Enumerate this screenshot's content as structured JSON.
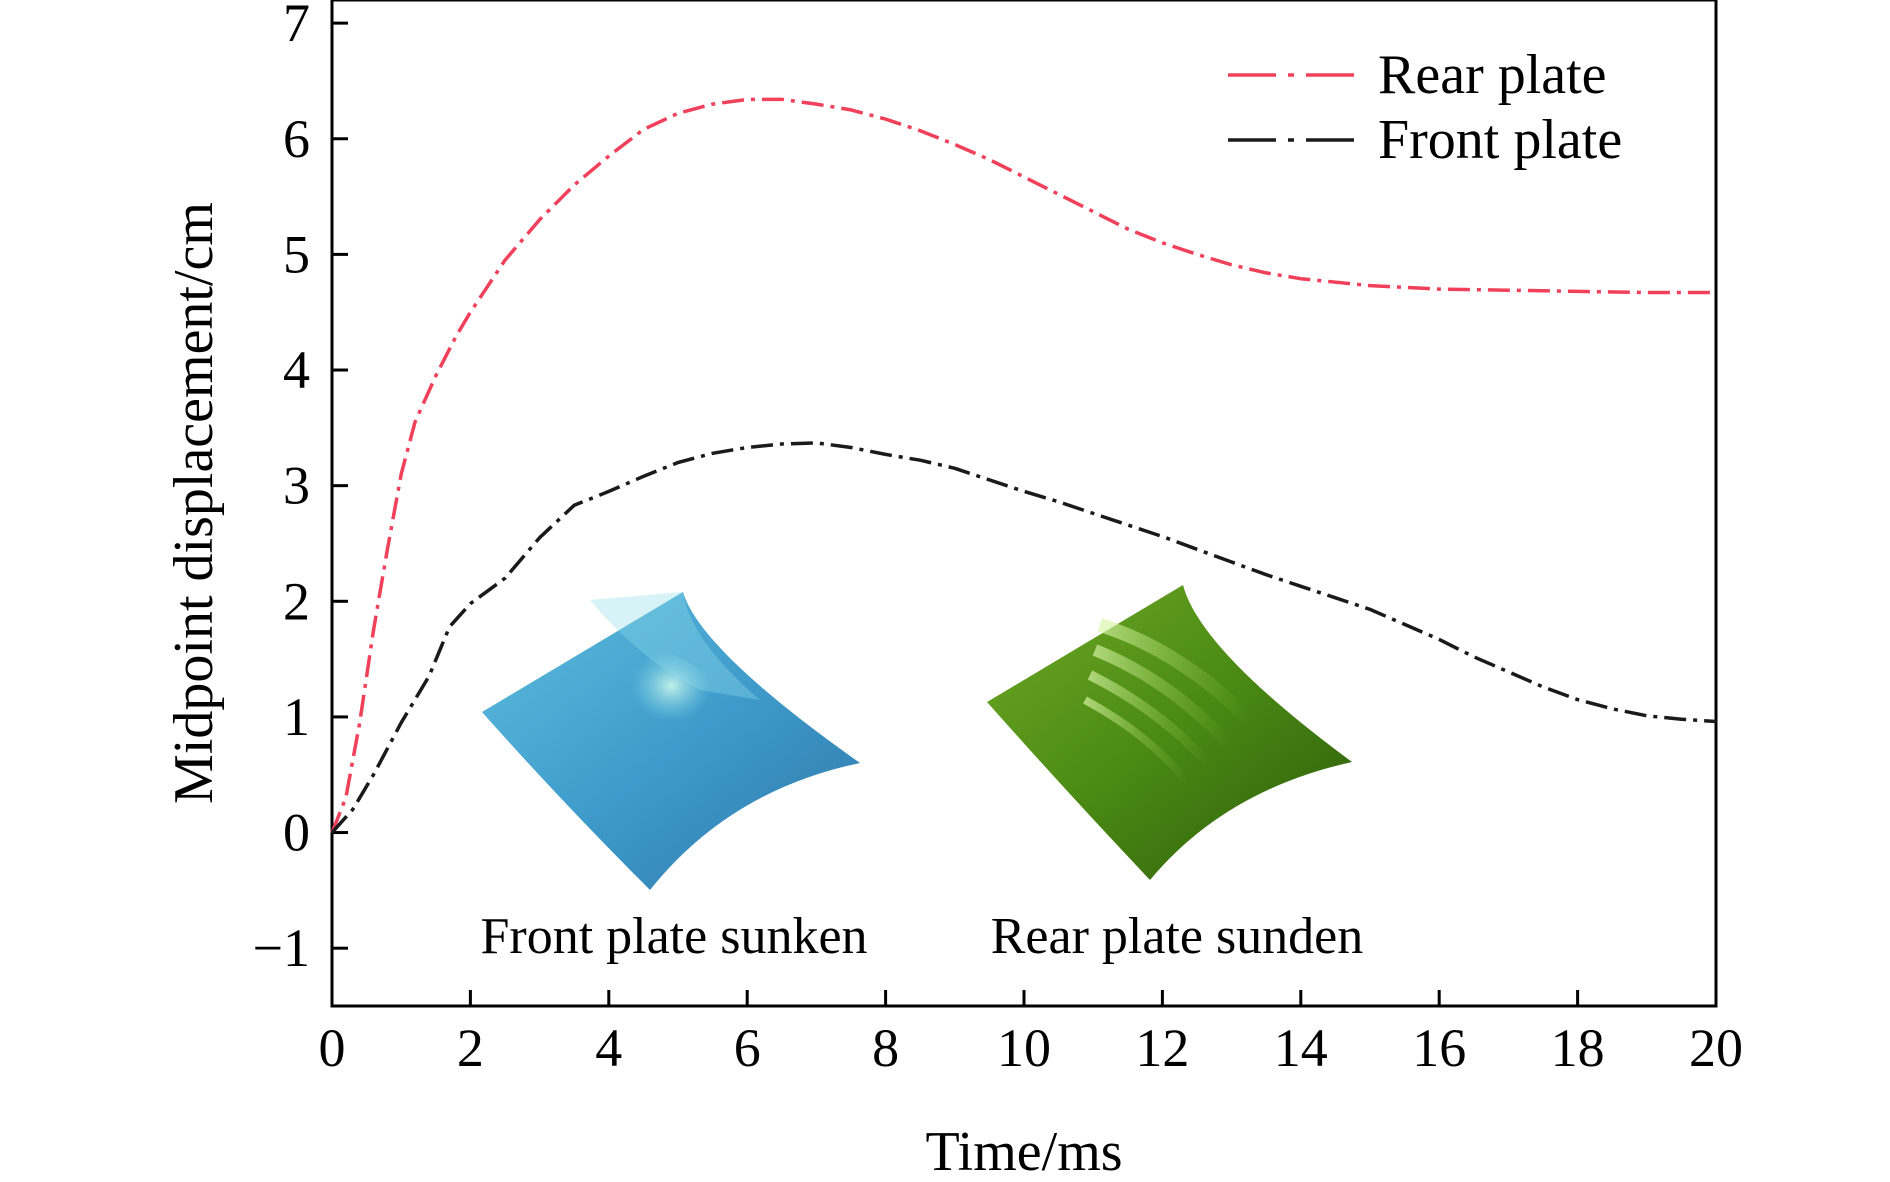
{
  "chart_data": {
    "type": "line",
    "title": "",
    "xlabel": "Time/ms",
    "ylabel": "Midpoint displacement/cm",
    "xlim": [
      0,
      20
    ],
    "ylim": [
      -1.5,
      7.2
    ],
    "x_ticks": [
      0,
      2,
      4,
      6,
      8,
      10,
      12,
      14,
      16,
      18,
      20
    ],
    "x_tick_labels": [
      "0",
      "2",
      "4",
      "6",
      "8",
      "10",
      "12",
      "14",
      "16",
      "18",
      "20"
    ],
    "y_ticks": [
      -1,
      0,
      1,
      2,
      3,
      4,
      5,
      6,
      7
    ],
    "y_tick_labels": [
      "−1",
      "0",
      "1",
      "2",
      "3",
      "4",
      "5",
      "6",
      "7"
    ],
    "grid": false,
    "legend_position": "top-right",
    "series": [
      {
        "name": "Rear plate",
        "color": "#f0405a",
        "dash": "dash-dot",
        "points": [
          [
            0,
            0
          ],
          [
            0.2,
            0.3
          ],
          [
            0.4,
            0.95
          ],
          [
            0.6,
            1.75
          ],
          [
            0.8,
            2.45
          ],
          [
            1.0,
            3.1
          ],
          [
            1.2,
            3.55
          ],
          [
            1.5,
            3.95
          ],
          [
            1.8,
            4.3
          ],
          [
            2.0,
            4.5
          ],
          [
            2.5,
            4.95
          ],
          [
            3.0,
            5.3
          ],
          [
            3.5,
            5.6
          ],
          [
            4.0,
            5.85
          ],
          [
            4.5,
            6.08
          ],
          [
            5.0,
            6.22
          ],
          [
            5.5,
            6.3
          ],
          [
            6.0,
            6.34
          ],
          [
            6.5,
            6.34
          ],
          [
            7.0,
            6.3
          ],
          [
            7.5,
            6.25
          ],
          [
            8.0,
            6.17
          ],
          [
            8.5,
            6.07
          ],
          [
            9.0,
            5.95
          ],
          [
            9.5,
            5.82
          ],
          [
            10.0,
            5.67
          ],
          [
            10.5,
            5.52
          ],
          [
            11.0,
            5.37
          ],
          [
            11.5,
            5.22
          ],
          [
            12.0,
            5.1
          ],
          [
            12.5,
            5.0
          ],
          [
            13.0,
            4.91
          ],
          [
            13.5,
            4.84
          ],
          [
            14.0,
            4.79
          ],
          [
            15.0,
            4.73
          ],
          [
            16.0,
            4.7
          ],
          [
            17.0,
            4.69
          ],
          [
            18.0,
            4.68
          ],
          [
            19.0,
            4.67
          ],
          [
            20.0,
            4.67
          ]
        ]
      },
      {
        "name": "Front plate",
        "color": "#1a1a1a",
        "dash": "dash-dot",
        "points": [
          [
            0,
            0
          ],
          [
            0.3,
            0.2
          ],
          [
            0.6,
            0.5
          ],
          [
            1.0,
            0.95
          ],
          [
            1.4,
            1.35
          ],
          [
            1.7,
            1.78
          ],
          [
            2.0,
            1.98
          ],
          [
            2.5,
            2.2
          ],
          [
            3.0,
            2.55
          ],
          [
            3.5,
            2.83
          ],
          [
            4.0,
            2.95
          ],
          [
            4.5,
            3.08
          ],
          [
            5.0,
            3.2
          ],
          [
            5.5,
            3.28
          ],
          [
            6.0,
            3.33
          ],
          [
            6.5,
            3.36
          ],
          [
            7.0,
            3.37
          ],
          [
            7.5,
            3.33
          ],
          [
            8.0,
            3.27
          ],
          [
            8.5,
            3.22
          ],
          [
            9.0,
            3.15
          ],
          [
            9.5,
            3.05
          ],
          [
            10.0,
            2.95
          ],
          [
            10.5,
            2.86
          ],
          [
            11.0,
            2.76
          ],
          [
            11.5,
            2.66
          ],
          [
            12.0,
            2.56
          ],
          [
            12.5,
            2.45
          ],
          [
            13.0,
            2.34
          ],
          [
            13.5,
            2.23
          ],
          [
            14.0,
            2.13
          ],
          [
            14.5,
            2.03
          ],
          [
            15.0,
            1.93
          ],
          [
            15.5,
            1.8
          ],
          [
            16.0,
            1.67
          ],
          [
            16.5,
            1.52
          ],
          [
            17.0,
            1.39
          ],
          [
            17.5,
            1.26
          ],
          [
            18.0,
            1.15
          ],
          [
            18.5,
            1.07
          ],
          [
            19.0,
            1.01
          ],
          [
            19.5,
            0.98
          ],
          [
            20.0,
            0.96
          ]
        ]
      }
    ],
    "annotations": [
      {
        "text": "Front plate sunken",
        "x": 5.0,
        "y": -0.9
      },
      {
        "text": "Rear plate sunden",
        "x": 12.3,
        "y": -0.9
      }
    ],
    "insets": [
      {
        "name": "front-plate-inset",
        "depicts": "front plate sunken",
        "color": "#3d98c8"
      },
      {
        "name": "rear-plate-inset",
        "depicts": "rear plate sunden",
        "color": "#3f7a10"
      }
    ]
  }
}
